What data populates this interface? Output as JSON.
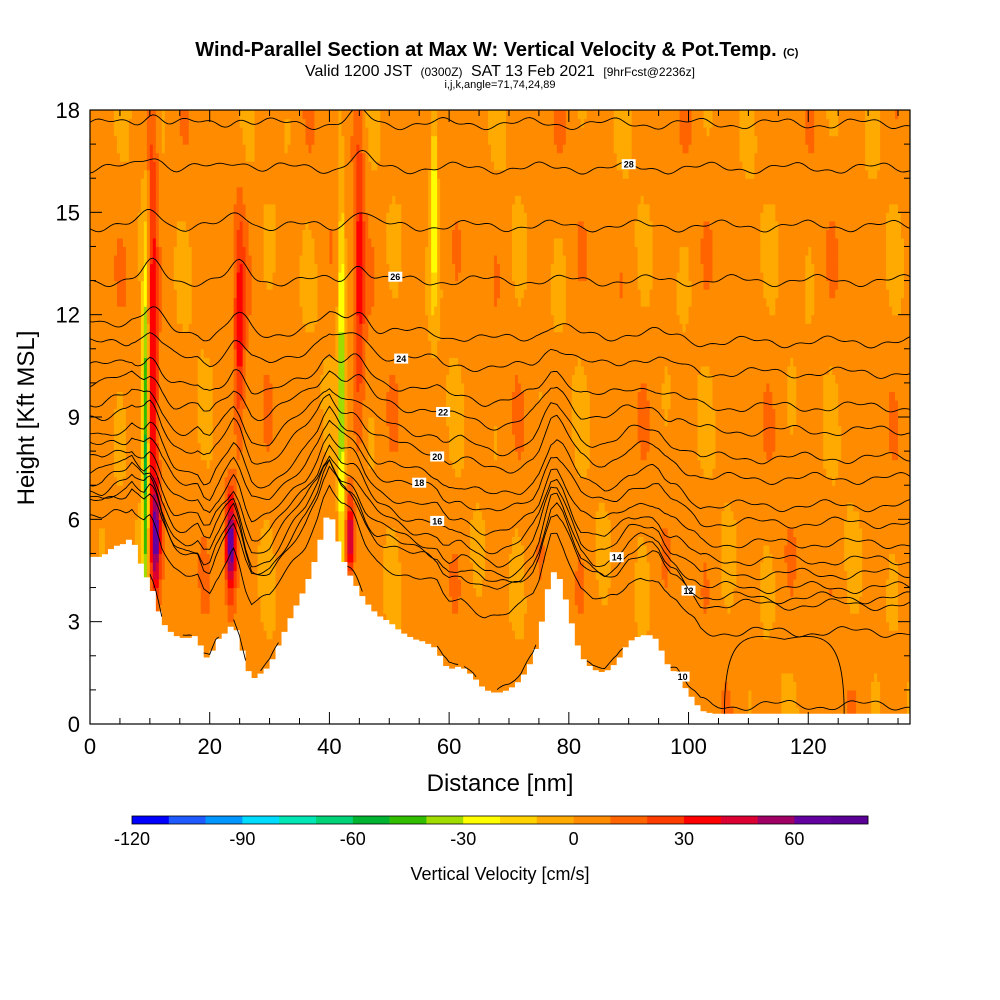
{
  "header": {
    "title_main": "Wind-Parallel Section at Max W: Vertical Velocity & Pot.Temp.",
    "title_mark": "(C)",
    "subtitle_a": "Valid 1200 JST",
    "subtitle_b": "(0300Z)",
    "subtitle_c": "SAT 13 Feb 2021",
    "subtitle_d": "[9hrFcst@2236z]",
    "subtitle_line3": "i,j,k,angle=71,74,24,89"
  },
  "chart_data": {
    "type": "heatmap",
    "title": "Wind-Parallel Section at Max W: Vertical Velocity & Pot.Temp.",
    "xlabel": "Distance [nm]",
    "ylabel": "Height [Kft MSL]",
    "xlim": [
      0,
      137
    ],
    "ylim": [
      0,
      18
    ],
    "x_ticks": [
      0,
      20,
      40,
      60,
      80,
      100,
      120
    ],
    "y_ticks": [
      0,
      3,
      6,
      9,
      12,
      15,
      18
    ],
    "colorbar": {
      "label": "Vertical Velocity [cm/s]",
      "min": -120,
      "max": 80,
      "step": 10,
      "ticks": [
        -120,
        -90,
        -60,
        -30,
        0,
        30,
        60
      ],
      "colors": [
        "#0000ff",
        "#1e5aff",
        "#0096ff",
        "#00dcff",
        "#00e6b4",
        "#00d278",
        "#00b432",
        "#32be00",
        "#a0dc00",
        "#ffff00",
        "#ffd200",
        "#ffaa00",
        "#ff8c00",
        "#ff6400",
        "#ff3c00",
        "#ff0000",
        "#dc0032",
        "#a00064",
        "#6400a0",
        "#5a0096"
      ]
    },
    "terrain": [
      [
        0,
        4.9
      ],
      [
        2,
        4.9
      ],
      [
        4,
        5.2
      ],
      [
        6,
        5.3
      ],
      [
        7,
        5.5
      ],
      [
        8,
        5.0
      ],
      [
        9,
        4.4
      ],
      [
        10,
        4.2
      ],
      [
        11,
        3.6
      ],
      [
        12,
        3.0
      ],
      [
        13,
        2.8
      ],
      [
        14,
        2.6
      ],
      [
        16,
        2.5
      ],
      [
        18,
        2.6
      ],
      [
        19,
        2.0
      ],
      [
        20,
        1.9
      ],
      [
        21,
        2.4
      ],
      [
        22,
        2.6
      ],
      [
        23,
        2.7
      ],
      [
        24,
        3.0
      ],
      [
        25,
        2.5
      ],
      [
        26,
        1.8
      ],
      [
        27,
        1.3
      ],
      [
        28,
        1.4
      ],
      [
        30,
        1.7
      ],
      [
        32,
        2.5
      ],
      [
        34,
        3.3
      ],
      [
        36,
        4.0
      ],
      [
        38,
        5.0
      ],
      [
        39,
        5.8
      ],
      [
        40,
        6.3
      ],
      [
        41,
        5.7
      ],
      [
        42,
        5.0
      ],
      [
        43,
        4.5
      ],
      [
        44,
        4.2
      ],
      [
        45,
        3.9
      ],
      [
        46,
        3.6
      ],
      [
        47,
        3.4
      ],
      [
        48,
        3.2
      ],
      [
        50,
        3.0
      ],
      [
        52,
        2.7
      ],
      [
        54,
        2.5
      ],
      [
        56,
        2.4
      ],
      [
        58,
        2.2
      ],
      [
        59,
        1.8
      ],
      [
        60,
        1.6
      ],
      [
        62,
        1.7
      ],
      [
        64,
        1.4
      ],
      [
        66,
        1.0
      ],
      [
        68,
        0.9
      ],
      [
        70,
        1.0
      ],
      [
        72,
        1.3
      ],
      [
        74,
        1.9
      ],
      [
        75,
        2.5
      ],
      [
        76,
        3.5
      ],
      [
        77,
        4.4
      ],
      [
        78,
        4.5
      ],
      [
        79,
        4.0
      ],
      [
        80,
        3.3
      ],
      [
        81,
        2.6
      ],
      [
        82,
        2.0
      ],
      [
        83,
        1.8
      ],
      [
        84,
        1.6
      ],
      [
        86,
        1.5
      ],
      [
        88,
        1.8
      ],
      [
        90,
        2.4
      ],
      [
        92,
        2.6
      ],
      [
        94,
        2.6
      ],
      [
        95,
        2.4
      ],
      [
        96,
        1.9
      ],
      [
        97,
        1.6
      ],
      [
        98,
        1.5
      ],
      [
        99,
        1.2
      ],
      [
        100,
        0.9
      ],
      [
        101,
        0.7
      ],
      [
        102,
        0.4
      ],
      [
        104,
        0.3
      ],
      [
        106,
        0.3
      ],
      [
        110,
        0.3
      ],
      [
        120,
        0.3
      ],
      [
        130,
        0.3
      ],
      [
        137,
        0.3
      ]
    ],
    "updrafts": [
      {
        "x": 10.5,
        "y_center": 11.5,
        "w_max": 35,
        "x_width": 0.9,
        "y_half_extent": 7.0
      },
      {
        "x": 11.0,
        "y_center": 5.5,
        "w_max": 55,
        "x_width": 0.8,
        "y_half_extent": 1.5
      },
      {
        "x": 23.5,
        "y_center": 5.3,
        "w_max": 70,
        "x_width": 0.9,
        "y_half_extent": 1.5
      },
      {
        "x": 25.0,
        "y_center": 11.5,
        "w_max": 30,
        "x_width": 0.9,
        "y_half_extent": 3.5
      },
      {
        "x": 43.5,
        "y_center": 5.5,
        "w_max": 55,
        "x_width": 0.7,
        "y_half_extent": 1.2
      },
      {
        "x": 45.0,
        "y_center": 13.5,
        "w_max": 30,
        "x_width": 0.9,
        "y_half_extent": 4.5
      }
    ],
    "downdrafts": [
      {
        "x": 9.3,
        "y_center": 8.5,
        "w_min": -65,
        "x_width": 0.55,
        "y_half_extent": 5.0
      },
      {
        "x": 42.0,
        "y_center": 10.0,
        "w_min": -45,
        "x_width": 0.55,
        "y_half_extent": 5.5
      },
      {
        "x": 57.5,
        "y_center": 15.5,
        "w_min": -35,
        "x_width": 0.6,
        "y_half_extent": 3.0
      }
    ],
    "theta_contours": [
      {
        "theta": 10,
        "y0": 0.55,
        "label": "10",
        "label_x": 99
      },
      {
        "theta": 11,
        "y0": 2.7
      },
      {
        "theta": 12,
        "y0": 3.5,
        "label": "12",
        "label_x": 100
      },
      {
        "theta": 13,
        "y0": 3.7
      },
      {
        "theta": 14,
        "y0": 4.0,
        "label": "14",
        "label_x": 88
      },
      {
        "theta": 15,
        "y0": 4.4
      },
      {
        "theta": 16,
        "y0": 4.8,
        "label": "16",
        "label_x": 58
      },
      {
        "theta": 17,
        "y0": 5.3
      },
      {
        "theta": 18,
        "y0": 5.9,
        "label": "18",
        "label_x": 55
      },
      {
        "theta": 19,
        "y0": 6.4
      },
      {
        "theta": 20,
        "y0": 7.2,
        "label": "20",
        "label_x": 58
      },
      {
        "theta": 21,
        "y0": 7.8
      },
      {
        "theta": 22,
        "y0": 8.6,
        "label": "22",
        "label_x": 59
      },
      {
        "theta": 23,
        "y0": 9.3
      },
      {
        "theta": 24,
        "y0": 10.3,
        "label": "24",
        "label_x": 52
      },
      {
        "theta": 25,
        "y0": 11.2
      },
      {
        "theta": 26,
        "y0": 13.0,
        "label": "26",
        "label_x": 51
      },
      {
        "theta": 27,
        "y0": 14.6
      },
      {
        "theta": 28,
        "y0": 16.3,
        "label": "28",
        "label_x": 90
      },
      {
        "theta": 29,
        "y0": 17.6
      }
    ],
    "closed_contour": {
      "label": "10",
      "x_range": [
        106,
        126
      ],
      "y_range": [
        0.3,
        2.6
      ]
    }
  }
}
